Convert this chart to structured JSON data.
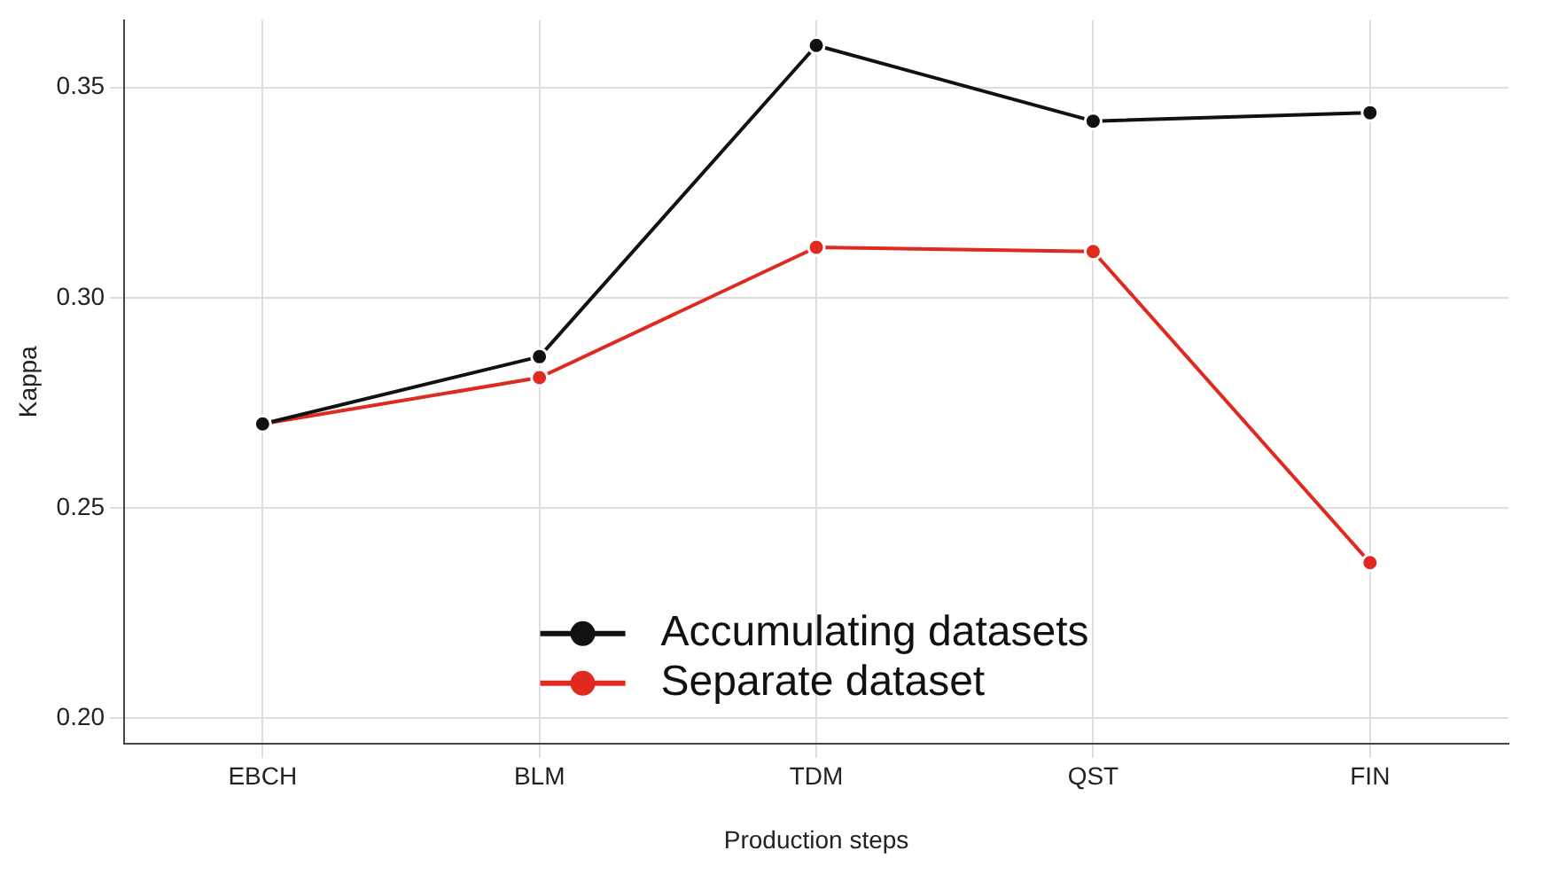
{
  "chart_data": {
    "type": "line",
    "xlabel": "Production steps",
    "ylabel": "Kappa",
    "categories": [
      "EBCH",
      "BLM",
      "TDM",
      "QST",
      "FIN"
    ],
    "series": [
      {
        "name": "Accumulating datasets",
        "color": "#111111",
        "values": [
          0.27,
          0.286,
          0.36,
          0.342,
          0.344
        ]
      },
      {
        "name": "Separate dataset",
        "color": "#e0291f",
        "values": [
          0.27,
          0.281,
          0.312,
          0.311,
          0.237
        ]
      }
    ],
    "ylim": [
      0.194,
      0.366
    ],
    "yticks": [
      {
        "value": 0.2,
        "label": "0.20"
      },
      {
        "value": 0.25,
        "label": "0.25"
      },
      {
        "value": 0.3,
        "label": "0.30"
      },
      {
        "value": 0.35,
        "label": "0.35"
      }
    ],
    "grid": true,
    "legend": "bottom",
    "marker": "circle",
    "line_style": "solid"
  }
}
